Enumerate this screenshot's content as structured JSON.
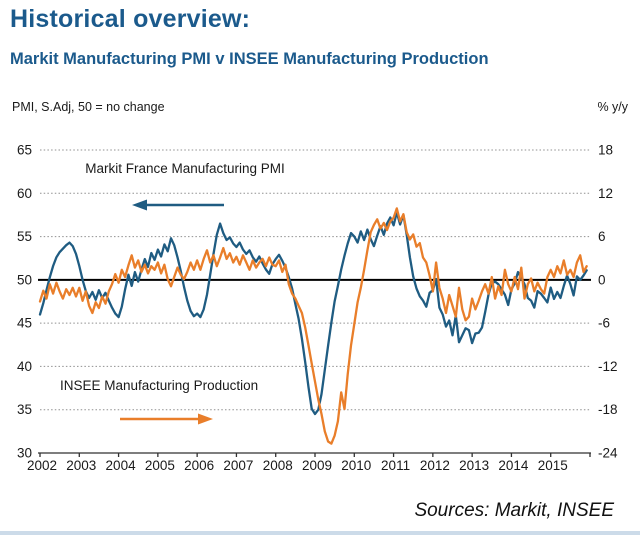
{
  "title": "Historical overview:",
  "subtitle": "Markit Manufacturing PMI v INSEE Manufacturing Production",
  "axis_captions": {
    "left": "PMI, S.Adj, 50 = no change",
    "right": "% y/y"
  },
  "source_note": "Sources: Markit, INSEE",
  "annotations": {
    "pmi_label": "Markit France Manufacturing PMI",
    "insee_label": "INSEE Manufacturing Production"
  },
  "colors": {
    "title": "#1B5A8C",
    "pmi_line": "#1F5C82",
    "insee_line": "#E97E2A",
    "baseline": "#000000",
    "gridline": "#909090",
    "axis": "#303030",
    "annotation_text": "#1a1a1a",
    "bottom_strip": "#CCDBE9"
  },
  "chart_data": {
    "type": "line",
    "title": "Markit Manufacturing PMI v INSEE Manufacturing Production",
    "x_tick_labels": [
      "2002",
      "2003",
      "2004",
      "2005",
      "2006",
      "2007",
      "2008",
      "2009",
      "2010",
      "2011",
      "2012",
      "2013",
      "2014",
      "2015"
    ],
    "x_range_years": [
      2002,
      2016
    ],
    "grid": "dotted-horizontal",
    "legend": "in-plot-annotations-with-arrows",
    "left_axis": {
      "label": "PMI, S.Adj, 50 = no change",
      "ticks": [
        30,
        35,
        40,
        45,
        50,
        55,
        60,
        65
      ],
      "range": [
        30,
        65
      ],
      "baseline": 50
    },
    "right_axis": {
      "label": "% y/y",
      "ticks": [
        -24,
        -18,
        -12,
        -6,
        0,
        6,
        12,
        18
      ],
      "range": [
        -24,
        18
      ],
      "baseline": 0
    },
    "series": [
      {
        "name": "Markit France Manufacturing PMI",
        "axis": "left",
        "color_key": "pmi_line",
        "frequency": "monthly",
        "start": "2002-01",
        "values": [
          46.0,
          47.3,
          48.8,
          50.3,
          51.6,
          52.6,
          53.2,
          53.6,
          54.0,
          54.3,
          53.9,
          53.0,
          51.6,
          50.0,
          48.7,
          47.9,
          48.6,
          47.7,
          48.8,
          47.9,
          48.5,
          47.6,
          46.8,
          46.1,
          45.7,
          46.9,
          48.9,
          50.6,
          49.3,
          50.9,
          49.8,
          51.2,
          52.4,
          51.5,
          53.1,
          52.3,
          53.5,
          52.7,
          54.1,
          53.3,
          54.8,
          54.0,
          52.6,
          51.0,
          49.2,
          47.6,
          46.4,
          45.8,
          46.1,
          45.7,
          46.6,
          48.3,
          50.6,
          53.0,
          55.2,
          56.5,
          55.4,
          54.6,
          54.9,
          54.2,
          53.8,
          54.3,
          53.5,
          53.0,
          53.4,
          52.6,
          52.1,
          52.7,
          51.9,
          51.2,
          50.7,
          51.8,
          52.4,
          52.9,
          52.2,
          51.4,
          50.3,
          49.0,
          47.2,
          45.5,
          43.2,
          40.5,
          37.6,
          35.1,
          34.5,
          35.0,
          36.8,
          39.6,
          42.4,
          45.1,
          47.5,
          49.3,
          51.2,
          52.8,
          54.2,
          55.4,
          55.0,
          54.3,
          55.6,
          54.6,
          55.8,
          54.7,
          53.9,
          55.1,
          56.2,
          55.2,
          56.5,
          57.2,
          56.3,
          57.8,
          56.4,
          57.5,
          55.2,
          52.6,
          50.4,
          49.0,
          48.1,
          47.6,
          46.9,
          48.5,
          48.8,
          50.1,
          46.8,
          46.0,
          44.6,
          45.3,
          43.6,
          45.9,
          42.8,
          43.6,
          44.4,
          44.2,
          42.7,
          43.8,
          43.9,
          44.5,
          46.3,
          48.3,
          49.6,
          49.8,
          49.5,
          48.9,
          48.3,
          47.1,
          48.9,
          49.6,
          50.9,
          50.2,
          49.5,
          47.9,
          47.6,
          46.8,
          48.7,
          48.4,
          47.9,
          47.4,
          49.1,
          47.8,
          48.6,
          47.9,
          49.3,
          50.5,
          49.5,
          48.2,
          50.4,
          50.0,
          50.5,
          51.1
        ]
      },
      {
        "name": "INSEE Manufacturing Production",
        "axis": "right",
        "color_key": "insee_line",
        "frequency": "monthly",
        "start": "2002-01",
        "values": [
          -3.0,
          -1.5,
          -2.6,
          -0.6,
          -1.9,
          -0.4,
          -1.6,
          -2.6,
          -1.3,
          -2.1,
          -1.1,
          -2.3,
          -1.1,
          -2.9,
          -1.6,
          -3.6,
          -4.6,
          -3.1,
          -3.9,
          -2.3,
          -3.3,
          -1.6,
          -0.6,
          0.8,
          -0.4,
          1.4,
          0.4,
          2.0,
          3.4,
          1.7,
          2.7,
          1.1,
          2.1,
          0.9,
          1.9,
          1.4,
          2.4,
          0.9,
          2.1,
          0.1,
          -0.9,
          0.4,
          1.7,
          0.7,
          0.1,
          1.1,
          2.4,
          1.4,
          2.7,
          1.4,
          2.9,
          4.1,
          2.4,
          3.4,
          1.9,
          3.1,
          4.4,
          2.9,
          3.7,
          2.4,
          3.2,
          2.1,
          3.4,
          2.4,
          1.4,
          2.7,
          1.7,
          2.4,
          2.9,
          1.9,
          3.1,
          2.1,
          1.9,
          2.7,
          1.1,
          2.1,
          -0.6,
          -1.9,
          -2.6,
          -3.6,
          -4.6,
          -6.6,
          -9.1,
          -11.6,
          -14.1,
          -16.6,
          -18.6,
          -21.0,
          -22.4,
          -22.7,
          -21.6,
          -19.6,
          -15.6,
          -17.9,
          -13.1,
          -9.1,
          -6.1,
          -3.1,
          -1.1,
          1.4,
          4.1,
          6.6,
          7.6,
          8.4,
          7.1,
          7.9,
          6.9,
          8.1,
          8.6,
          9.9,
          8.1,
          9.1,
          6.6,
          5.6,
          6.3,
          4.6,
          5.1,
          3.1,
          2.4,
          0.6,
          -1.6,
          2.4,
          -1.1,
          -2.6,
          -4.6,
          -2.1,
          -3.6,
          -5.1,
          -1.1,
          -4.1,
          -5.6,
          -5.1,
          -2.6,
          -4.1,
          -2.9,
          -1.6,
          -0.6,
          -1.9,
          0.4,
          -2.6,
          -0.9,
          -2.1,
          1.4,
          -0.6,
          -1.6,
          0.4,
          -1.3,
          1.7,
          -2.6,
          -0.6,
          0.2,
          -1.6,
          -0.4,
          -1.3,
          -1.9,
          0.4,
          1.4,
          0.4,
          1.9,
          0.9,
          2.7,
          0.7,
          1.4,
          0.4,
          2.4,
          3.4,
          1.1,
          1.9
        ]
      }
    ]
  }
}
